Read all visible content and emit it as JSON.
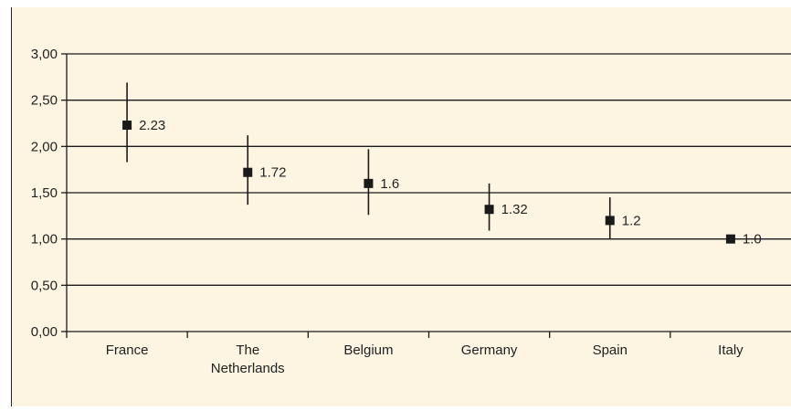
{
  "chart_data": {
    "type": "scatter",
    "categories": [
      "France",
      "The Netherlands",
      "Belgium",
      "Germany",
      "Spain",
      "Italy"
    ],
    "category_lines": [
      [
        "France"
      ],
      [
        "The",
        "Netherlands"
      ],
      [
        "Belgium"
      ],
      [
        "Germany"
      ],
      [
        "Spain"
      ],
      [
        "Italy"
      ]
    ],
    "values": [
      2.23,
      1.72,
      1.6,
      1.32,
      1.2,
      1.0
    ],
    "data_labels": [
      "2.23",
      "1.72",
      "1.6",
      "1.32",
      "1.2",
      "1.0"
    ],
    "error_low": [
      1.83,
      1.37,
      1.26,
      1.09,
      1.0,
      1.0
    ],
    "error_high": [
      2.69,
      2.12,
      1.97,
      1.6,
      1.45,
      1.0
    ],
    "ylim": [
      0,
      3
    ],
    "yticks": [
      0,
      0.5,
      1,
      1.5,
      2,
      2.5,
      3
    ],
    "ytick_labels": [
      "0,00",
      "0,50",
      "1,00",
      "1,50",
      "2,00",
      "2,50",
      "3,00"
    ],
    "grid": true,
    "title": "",
    "xlabel": "",
    "ylabel": ""
  },
  "colors": {
    "background": "#fdf4e1",
    "marker": "#1a1a1a",
    "gridline": "#1a1a1a"
  }
}
